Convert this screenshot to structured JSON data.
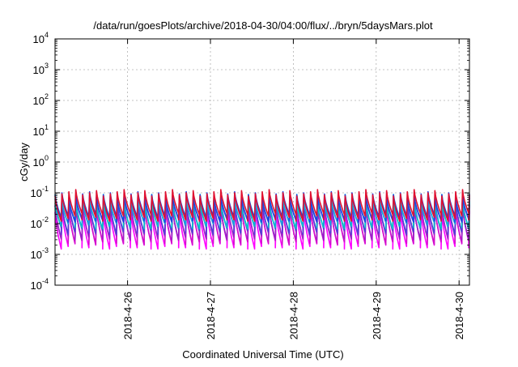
{
  "chart_data": {
    "type": "line",
    "title": "/data/run/goesPlots/archive/2018-04-30/04:00/flux/../bryn/5daysMars.plot",
    "xlabel": "Coordinated Universal Time (UTC)",
    "ylabel": "cGy/day",
    "yscale": "log",
    "ylim": [
      0.0001,
      10000
    ],
    "xlim": [
      "2018-04-25T03:00",
      "2018-04-30T03:00"
    ],
    "ytick_exponents": [
      "4",
      "3",
      "2",
      "1",
      "0",
      "-1",
      "-2",
      "-3",
      "-4"
    ],
    "xtick_labels": [
      "2018-4-26",
      "2018-4-27",
      "2018-4-28",
      "2018-4-29",
      "2018-4-30"
    ],
    "xtick_times": [
      "2018-04-26T00:00",
      "2018-04-27T00:00",
      "2018-04-28T00:00",
      "2018-04-29T00:00",
      "2018-04-30T00:00"
    ],
    "grid": true,
    "pattern": {
      "cycle_hours": 2,
      "first_peak": "2018-04-25T03:00"
    },
    "series": [
      {
        "color": "#ff00ff",
        "peak": 0.03,
        "trough": 0.002
      },
      {
        "color": "#d010c8",
        "peak": 0.036,
        "trough": 0.0028
      },
      {
        "color": "#9a22c8",
        "peak": 0.045,
        "trough": 0.004
      },
      {
        "color": "#5040d8",
        "peak": 0.055,
        "trough": 0.006
      },
      {
        "color": "#00c8c8",
        "peak": 0.05,
        "trough": 0.009
      },
      {
        "color": "#1aa0e0",
        "peak": 0.07,
        "trough": 0.012
      },
      {
        "color": "#2040e0",
        "peak": 0.085,
        "trough": 0.015
      },
      {
        "color": "#e01030",
        "peak": 0.1,
        "trough": 0.016
      }
    ]
  }
}
